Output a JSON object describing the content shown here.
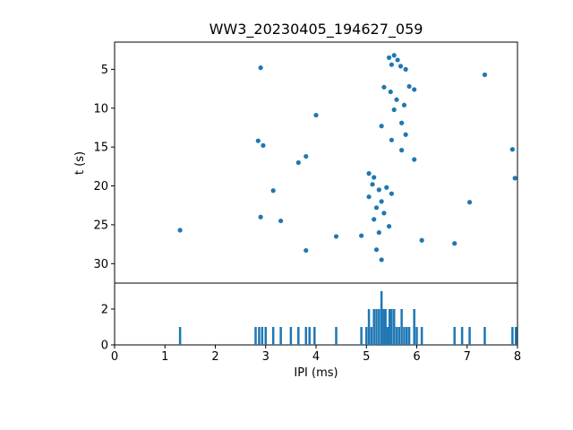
{
  "title": "WW3_20230405_194627_059",
  "chart_data": [
    {
      "type": "scatter",
      "title": "WW3_20230405_194627_059",
      "xlabel": "",
      "ylabel": "t (s)",
      "xlim": [
        0,
        8
      ],
      "ylim": [
        1.5,
        32.5
      ],
      "y_inverted": true,
      "y_ticks": [
        5,
        10,
        15,
        20,
        25,
        30
      ],
      "grid": false,
      "color": "#1f77b4",
      "marker_radius_px": 2.6,
      "points": [
        [
          2.9,
          4.8
        ],
        [
          5.45,
          3.5
        ],
        [
          5.55,
          3.2
        ],
        [
          5.62,
          3.8
        ],
        [
          5.5,
          4.4
        ],
        [
          5.68,
          4.6
        ],
        [
          5.78,
          5.0
        ],
        [
          7.35,
          5.7
        ],
        [
          5.35,
          7.3
        ],
        [
          5.48,
          7.9
        ],
        [
          5.85,
          7.2
        ],
        [
          5.95,
          7.6
        ],
        [
          5.6,
          8.9
        ],
        [
          5.75,
          9.6
        ],
        [
          5.55,
          10.2
        ],
        [
          4.0,
          10.9
        ],
        [
          5.3,
          12.3
        ],
        [
          5.7,
          11.9
        ],
        [
          5.78,
          13.4
        ],
        [
          5.5,
          14.1
        ],
        [
          2.85,
          14.2
        ],
        [
          2.95,
          14.8
        ],
        [
          5.7,
          15.4
        ],
        [
          7.9,
          15.3
        ],
        [
          5.95,
          16.6
        ],
        [
          3.8,
          16.2
        ],
        [
          3.65,
          17.0
        ],
        [
          5.05,
          18.4
        ],
        [
          5.15,
          18.9
        ],
        [
          7.95,
          19.0
        ],
        [
          3.15,
          20.6
        ],
        [
          5.12,
          19.8
        ],
        [
          5.25,
          20.5
        ],
        [
          5.4,
          20.2
        ],
        [
          5.05,
          21.4
        ],
        [
          5.5,
          21.0
        ],
        [
          5.3,
          22.0
        ],
        [
          7.05,
          22.1
        ],
        [
          5.2,
          22.8
        ],
        [
          5.35,
          23.5
        ],
        [
          2.9,
          24.0
        ],
        [
          3.3,
          24.5
        ],
        [
          1.3,
          25.7
        ],
        [
          4.4,
          26.5
        ],
        [
          4.9,
          26.4
        ],
        [
          6.1,
          27.0
        ],
        [
          6.75,
          27.4
        ],
        [
          3.8,
          28.3
        ],
        [
          5.25,
          26.0
        ],
        [
          5.45,
          25.2
        ],
        [
          5.15,
          24.3
        ],
        [
          5.3,
          29.5
        ],
        [
          5.2,
          28.2
        ]
      ]
    },
    {
      "type": "bar",
      "title": "",
      "xlabel": "IPI (ms)",
      "ylabel": "",
      "xlim": [
        0,
        8
      ],
      "ylim": [
        0,
        3.45
      ],
      "x_ticks": [
        0,
        1,
        2,
        3,
        4,
        5,
        6,
        7,
        8
      ],
      "y_ticks": [
        0,
        2
      ],
      "grid": false,
      "color": "#1f77b4",
      "bar_width_ms": 0.045,
      "bars": [
        [
          1.3,
          1
        ],
        [
          2.8,
          1
        ],
        [
          2.87,
          1
        ],
        [
          2.93,
          1
        ],
        [
          3.0,
          1
        ],
        [
          3.15,
          1
        ],
        [
          3.3,
          1
        ],
        [
          3.5,
          1
        ],
        [
          3.65,
          1
        ],
        [
          3.8,
          1
        ],
        [
          3.87,
          1
        ],
        [
          3.97,
          1
        ],
        [
          4.4,
          1
        ],
        [
          4.9,
          1
        ],
        [
          5.0,
          1
        ],
        [
          5.05,
          2
        ],
        [
          5.1,
          1
        ],
        [
          5.15,
          2
        ],
        [
          5.2,
          2
        ],
        [
          5.25,
          2
        ],
        [
          5.3,
          3
        ],
        [
          5.34,
          2
        ],
        [
          5.38,
          2
        ],
        [
          5.42,
          1
        ],
        [
          5.46,
          2
        ],
        [
          5.5,
          2
        ],
        [
          5.55,
          2
        ],
        [
          5.6,
          1
        ],
        [
          5.65,
          1
        ],
        [
          5.7,
          2
        ],
        [
          5.75,
          1
        ],
        [
          5.8,
          1
        ],
        [
          5.85,
          1
        ],
        [
          5.95,
          2
        ],
        [
          6.0,
          1
        ],
        [
          6.1,
          1
        ],
        [
          6.75,
          1
        ],
        [
          6.9,
          1
        ],
        [
          7.05,
          1
        ],
        [
          7.35,
          1
        ],
        [
          7.9,
          1
        ],
        [
          7.97,
          1
        ]
      ]
    }
  ]
}
